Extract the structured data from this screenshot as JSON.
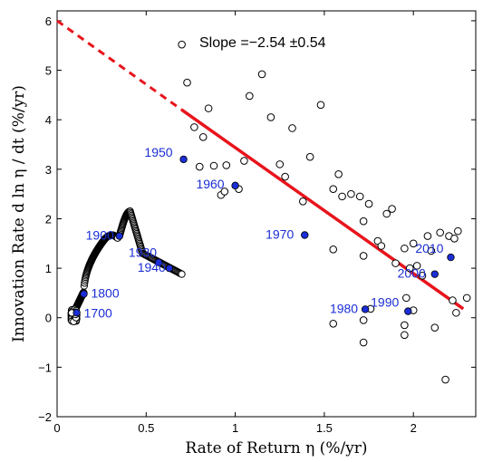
{
  "chart_data": {
    "type": "scatter",
    "xlabel": "Rate of Return η (%/yr)",
    "ylabel": "Innovation Rate d ln η / dt (%/yr)",
    "xlim": [
      0,
      2.35
    ],
    "ylim": [
      -2,
      6.2
    ],
    "xticks": [
      "0",
      "0.5",
      "1",
      "1.5",
      "2"
    ],
    "yticks": [
      "−2",
      "−1",
      "0",
      "1",
      "2",
      "3",
      "4",
      "5",
      "6"
    ],
    "grid": false,
    "annotation": "Slope =−2.54 ±0.54",
    "fit_line": {
      "color": "#e8141c",
      "solid": [
        [
          0.7,
          4.2
        ],
        [
          2.28,
          0.18
        ]
      ],
      "dashed": [
        [
          0.0,
          6.0
        ],
        [
          0.7,
          4.2
        ]
      ]
    },
    "series": [
      {
        "marker": "open-circle",
        "points": [
          [
            0.73,
            4.75
          ],
          [
            0.77,
            3.85
          ],
          [
            0.82,
            3.65
          ],
          [
            0.85,
            4.23
          ],
          [
            0.8,
            3.05
          ],
          [
            0.88,
            3.07
          ],
          [
            0.92,
            2.48
          ],
          [
            0.95,
            3.08
          ],
          [
            0.94,
            2.55
          ],
          [
            1.02,
            2.6
          ],
          [
            1.05,
            3.17
          ],
          [
            1.08,
            4.48
          ],
          [
            1.15,
            4.92
          ],
          [
            1.2,
            4.05
          ],
          [
            1.25,
            3.1
          ],
          [
            1.28,
            2.85
          ],
          [
            1.32,
            3.83
          ],
          [
            1.38,
            2.35
          ],
          [
            1.42,
            3.25
          ],
          [
            1.48,
            4.3
          ],
          [
            1.55,
            2.6
          ],
          [
            1.58,
            2.9
          ],
          [
            1.6,
            2.45
          ],
          [
            1.65,
            2.5
          ],
          [
            1.7,
            2.45
          ],
          [
            1.72,
            1.95
          ],
          [
            1.75,
            2.3
          ],
          [
            1.8,
            1.55
          ],
          [
            1.85,
            2.1
          ],
          [
            1.88,
            2.2
          ],
          [
            1.82,
            1.45
          ],
          [
            1.9,
            1.1
          ],
          [
            1.95,
            1.4
          ],
          [
            1.98,
            1.0
          ],
          [
            2.0,
            1.5
          ],
          [
            2.02,
            1.05
          ],
          [
            2.05,
            0.85
          ],
          [
            2.08,
            1.65
          ],
          [
            2.1,
            1.35
          ],
          [
            2.15,
            1.72
          ],
          [
            2.2,
            1.65
          ],
          [
            2.23,
            1.6
          ],
          [
            2.25,
            1.75
          ],
          [
            2.22,
            0.35
          ],
          [
            2.24,
            0.1
          ],
          [
            2.3,
            0.4
          ],
          [
            2.12,
            -0.2
          ],
          [
            2.18,
            -1.25
          ],
          [
            1.95,
            -0.35
          ],
          [
            1.95,
            -0.15
          ],
          [
            1.96,
            0.4
          ],
          [
            1.72,
            1.25
          ],
          [
            1.72,
            -0.05
          ],
          [
            1.72,
            -0.5
          ],
          [
            1.55,
            -0.12
          ],
          [
            1.55,
            1.38
          ],
          [
            1.76,
            0.18
          ],
          [
            2.0,
            0.15
          ],
          [
            0.7,
            5.52
          ]
        ]
      },
      {
        "marker": "filled-circle",
        "points": [
          [
            0.11,
            0.1
          ],
          [
            0.15,
            0.48
          ],
          [
            0.35,
            1.65
          ],
          [
            0.57,
            1.12
          ],
          [
            0.63,
            1.0
          ],
          [
            0.71,
            3.2
          ],
          [
            1.0,
            2.67
          ],
          [
            1.39,
            1.67
          ],
          [
            1.73,
            0.17
          ],
          [
            1.97,
            0.13
          ],
          [
            2.12,
            0.88
          ],
          [
            2.21,
            1.22
          ]
        ],
        "labels": [
          "1700",
          "1800",
          "1900",
          "1930",
          "1940",
          "1950",
          "1960",
          "1970",
          "1980",
          "1990",
          "2000",
          "2010"
        ]
      }
    ]
  }
}
